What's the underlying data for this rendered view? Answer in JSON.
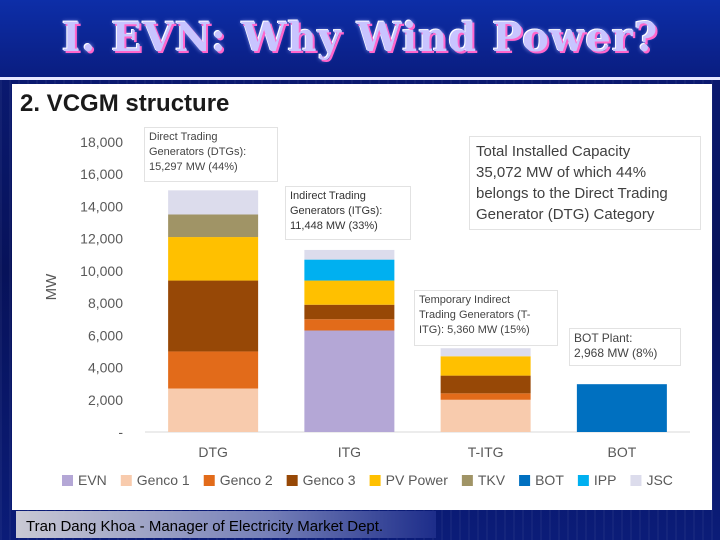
{
  "slide": {
    "title": "I. EVN: Why Wind Power?",
    "subtitle": "2. VCGM structure",
    "footer": "Tran Dang Khoa - Manager of Electricity Market Dept."
  },
  "chart_data": {
    "type": "bar",
    "stacked": true,
    "categories": [
      "DTG",
      "ITG",
      "T-ITG",
      "BOT"
    ],
    "ylabel": "MW",
    "ylim": [
      0,
      18000
    ],
    "yticks": [
      "-",
      "2,000",
      "4,000",
      "6,000",
      "8,000",
      "10,000",
      "12,000",
      "14,000",
      "16,000",
      "18,000"
    ],
    "grid": false,
    "legend_position": "bottom",
    "series": [
      {
        "name": "EVN",
        "color": "#b4a7d6",
        "values": [
          0,
          6300,
          0,
          0
        ]
      },
      {
        "name": "Genco 1",
        "color": "#f8cbad",
        "values": [
          2700,
          0,
          2000,
          0
        ]
      },
      {
        "name": "Genco 2",
        "color": "#e26b1a",
        "values": [
          2300,
          700,
          400,
          0
        ]
      },
      {
        "name": "Genco 3",
        "color": "#974806",
        "values": [
          4400,
          900,
          1100,
          0
        ]
      },
      {
        "name": "PV Power",
        "color": "#ffc000",
        "values": [
          2700,
          1500,
          1200,
          0
        ]
      },
      {
        "name": "TKV",
        "color": "#a09466",
        "values": [
          1400,
          0,
          0,
          0
        ]
      },
      {
        "name": "BOT",
        "color": "#0070c0",
        "values": [
          0,
          0,
          0,
          2968
        ]
      },
      {
        "name": "IPP",
        "color": "#00b0f0",
        "values": [
          0,
          1300,
          0,
          0
        ]
      },
      {
        "name": "JSC",
        "color": "#dcdcec",
        "values": [
          1500,
          600,
          500,
          0
        ]
      }
    ],
    "annotations": {
      "dtg": [
        "Direct Trading",
        "Generators (DTGs):",
        "15,297 MW (44%)"
      ],
      "itg": [
        "Indirect Trading",
        "Generators (ITGs):",
        "11,448 MW (33%)"
      ],
      "titg": [
        "Temporary Indirect",
        "Trading Generators (T-",
        "ITG): 5,360 MW (15%)"
      ],
      "bot": [
        "BOT Plant:",
        "2,968 MW (8%)"
      ],
      "total": [
        "Total Installed Capacity",
        "35,072 MW of which 44%",
        "belongs to the Direct Trading",
        "Generator (DTG) Category"
      ]
    }
  }
}
